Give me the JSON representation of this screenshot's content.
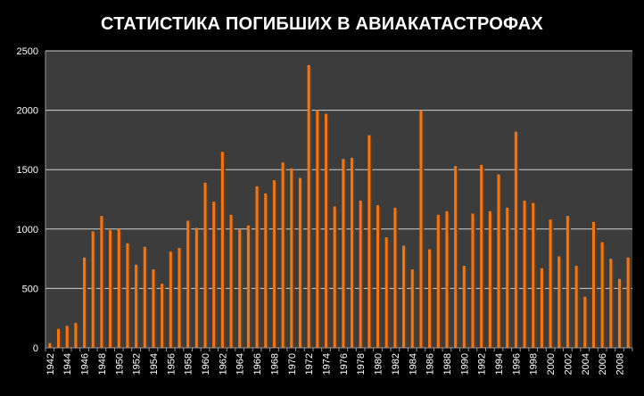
{
  "chart_data": {
    "type": "bar",
    "title": "СТАТИСТИКА ПОГИБШИХ В АВИАКАТАСТРОФАХ",
    "xlabel": "",
    "ylabel": "",
    "ylim": [
      0,
      2500
    ],
    "yticks": [
      0,
      500,
      1000,
      1500,
      2000,
      2500
    ],
    "grid": true,
    "legend": "none",
    "categories": [
      1942,
      1943,
      1944,
      1945,
      1946,
      1947,
      1948,
      1949,
      1950,
      1951,
      1952,
      1953,
      1954,
      1955,
      1956,
      1957,
      1958,
      1959,
      1960,
      1961,
      1962,
      1963,
      1964,
      1965,
      1966,
      1967,
      1968,
      1969,
      1970,
      1971,
      1972,
      1973,
      1974,
      1975,
      1976,
      1977,
      1978,
      1979,
      1980,
      1981,
      1982,
      1983,
      1984,
      1985,
      1986,
      1987,
      1988,
      1989,
      1990,
      1991,
      1992,
      1993,
      1994,
      1995,
      1996,
      1997,
      1998,
      1999,
      2000,
      2001,
      2002,
      2003,
      2004,
      2005,
      2006,
      2007,
      2008,
      2009
    ],
    "values": [
      40,
      160,
      185,
      210,
      760,
      980,
      1110,
      990,
      1000,
      880,
      700,
      850,
      660,
      540,
      810,
      840,
      1070,
      1010,
      1390,
      1230,
      1650,
      1120,
      1000,
      1030,
      1360,
      1300,
      1410,
      1560,
      1510,
      1430,
      2380,
      2000,
      1970,
      1190,
      1590,
      1600,
      1240,
      1790,
      1200,
      930,
      1180,
      860,
      660,
      2000,
      830,
      1120,
      1150,
      1530,
      690,
      1130,
      1540,
      1150,
      1460,
      1180,
      1820,
      1240,
      1220,
      670,
      1080,
      770,
      1110,
      690,
      430,
      1060,
      890,
      750,
      580,
      760
    ],
    "tick_labels": [
      "1942",
      "1944",
      "1946",
      "1948",
      "1950",
      "1952",
      "1954",
      "1956",
      "1958",
      "1960",
      "1962",
      "1964",
      "1966",
      "1968",
      "1970",
      "1972",
      "1974",
      "1976",
      "1978",
      "1980",
      "1982",
      "1984",
      "1986",
      "1988",
      "1990",
      "1992",
      "1994",
      "1996",
      "1998",
      "2000",
      "2002",
      "2004",
      "2006",
      "2008"
    ],
    "colors": {
      "bar": "#e87722",
      "bar_shadow": "#6b3a12",
      "plot_bg": "#3c3c3c",
      "grid": "#d0d0d0",
      "text": "#ffffff",
      "page_bg": "#000000"
    }
  }
}
